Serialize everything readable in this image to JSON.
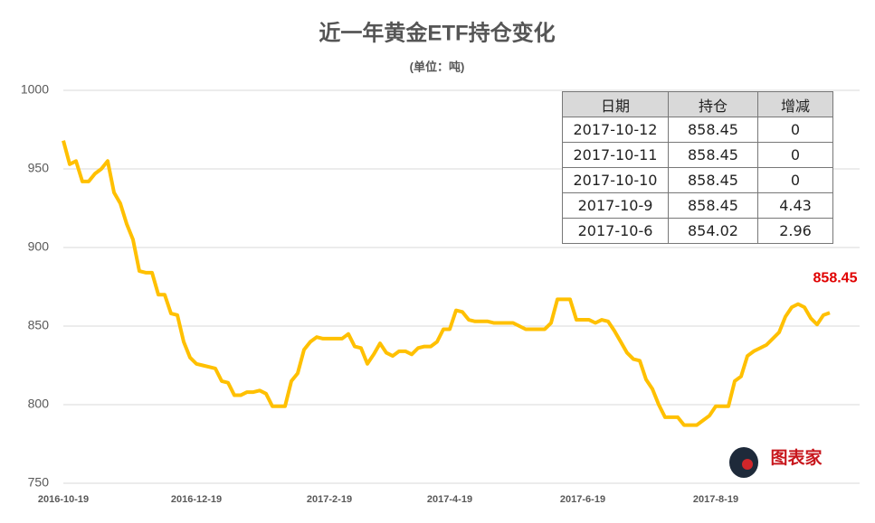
{
  "chart_data": {
    "type": "line",
    "title": "近一年黄金ETF持仓变化",
    "subtitle": "(单位：吨)",
    "categories": [
      "2016-10-19",
      null,
      null,
      null,
      null,
      null,
      null,
      null,
      null,
      null,
      null,
      null,
      null,
      null,
      null,
      null,
      null,
      null,
      null,
      null,
      null,
      "2016-12-19",
      null,
      null,
      null,
      null,
      null,
      null,
      null,
      null,
      null,
      null,
      null,
      null,
      null,
      null,
      null,
      null,
      null,
      null,
      null,
      null,
      "2017-2-19",
      null,
      null,
      null,
      null,
      null,
      null,
      null,
      null,
      null,
      null,
      null,
      null,
      null,
      null,
      null,
      null,
      null,
      null,
      "2017-4-19",
      null,
      null,
      null,
      null,
      null,
      null,
      null,
      null,
      null,
      null,
      null,
      null,
      null,
      null,
      null,
      null,
      null,
      null,
      null,
      null,
      "2017-6-19",
      null,
      null,
      null,
      null,
      null,
      null,
      null,
      null,
      null,
      null,
      null,
      null,
      null,
      null,
      null,
      null,
      null,
      null,
      null,
      null,
      "2017-8-19",
      null,
      null,
      null,
      null,
      null,
      null,
      null,
      null,
      null,
      null,
      null,
      null,
      null,
      null,
      null,
      null,
      null,
      null
    ],
    "values": [
      968,
      953,
      955,
      942,
      942,
      947,
      950,
      955,
      935,
      928,
      915,
      905,
      885,
      884,
      884,
      870,
      870,
      858,
      857,
      840,
      830,
      826,
      825,
      824,
      823,
      815,
      814,
      806,
      806,
      808,
      808,
      809,
      807,
      799,
      799,
      799,
      815,
      820,
      835,
      840,
      843,
      842,
      842,
      842,
      842,
      845,
      837,
      836,
      826,
      832,
      839,
      833,
      831,
      834,
      834,
      832,
      836,
      837,
      837,
      840,
      848,
      848,
      860,
      859,
      854,
      853,
      853,
      853,
      852,
      852,
      852,
      852,
      850,
      848,
      848,
      848,
      848,
      852,
      867,
      867,
      867,
      854,
      854,
      854,
      852,
      854,
      853,
      847,
      840,
      833,
      829,
      828,
      816,
      810,
      800,
      792,
      792,
      792,
      787,
      787,
      787,
      790,
      793,
      799,
      799,
      799,
      815,
      818,
      831,
      834,
      836,
      838,
      842,
      846,
      856,
      862,
      864,
      862,
      855,
      851,
      857,
      858.45
    ],
    "color": "#ffc000",
    "ylim": [
      750,
      1000
    ],
    "yticks": [
      750,
      800,
      850,
      900,
      950,
      1000
    ],
    "grid": true,
    "label_color": "#e00000"
  },
  "table": {
    "header": [
      "日期",
      "持仓",
      "增减"
    ],
    "rows": [
      [
        "2017-10-12",
        "858.45",
        "0"
      ],
      [
        "2017-10-11",
        "858.45",
        "0"
      ],
      [
        "2017-10-10",
        "858.45",
        "0"
      ],
      [
        "2017-10-9",
        "858.45",
        "4.43"
      ],
      [
        "2017-10-6",
        "854.02",
        "2.96"
      ]
    ]
  },
  "logo": "图表家"
}
